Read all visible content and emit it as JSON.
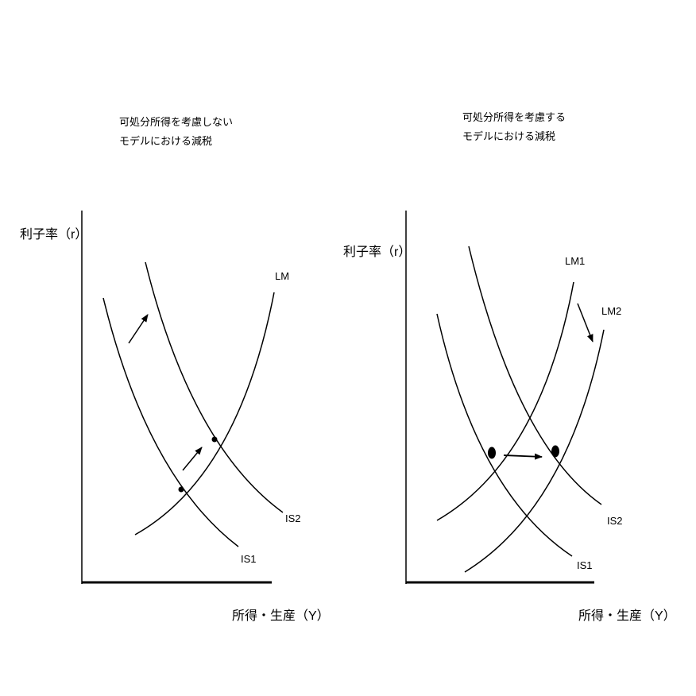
{
  "left_panel": {
    "title_line1": "可処分所得を考慮しない",
    "title_line2": "モデルにおける減税",
    "y_axis_label": "利子率（r）",
    "x_axis_label": "所得・生産（Y）",
    "curves": {
      "lm": "LM",
      "is1": "IS1",
      "is2": "IS2"
    }
  },
  "right_panel": {
    "title_line1": "可処分所得を考慮する",
    "title_line2": "モデルにおける減税",
    "y_axis_label": "利子率（r）",
    "x_axis_label": "所得・生産（Y）",
    "curves": {
      "lm1": "LM1",
      "lm2": "LM2",
      "is1": "IS1",
      "is2": "IS2"
    }
  },
  "colors": {
    "ink": "#000000",
    "background": "#ffffff"
  }
}
